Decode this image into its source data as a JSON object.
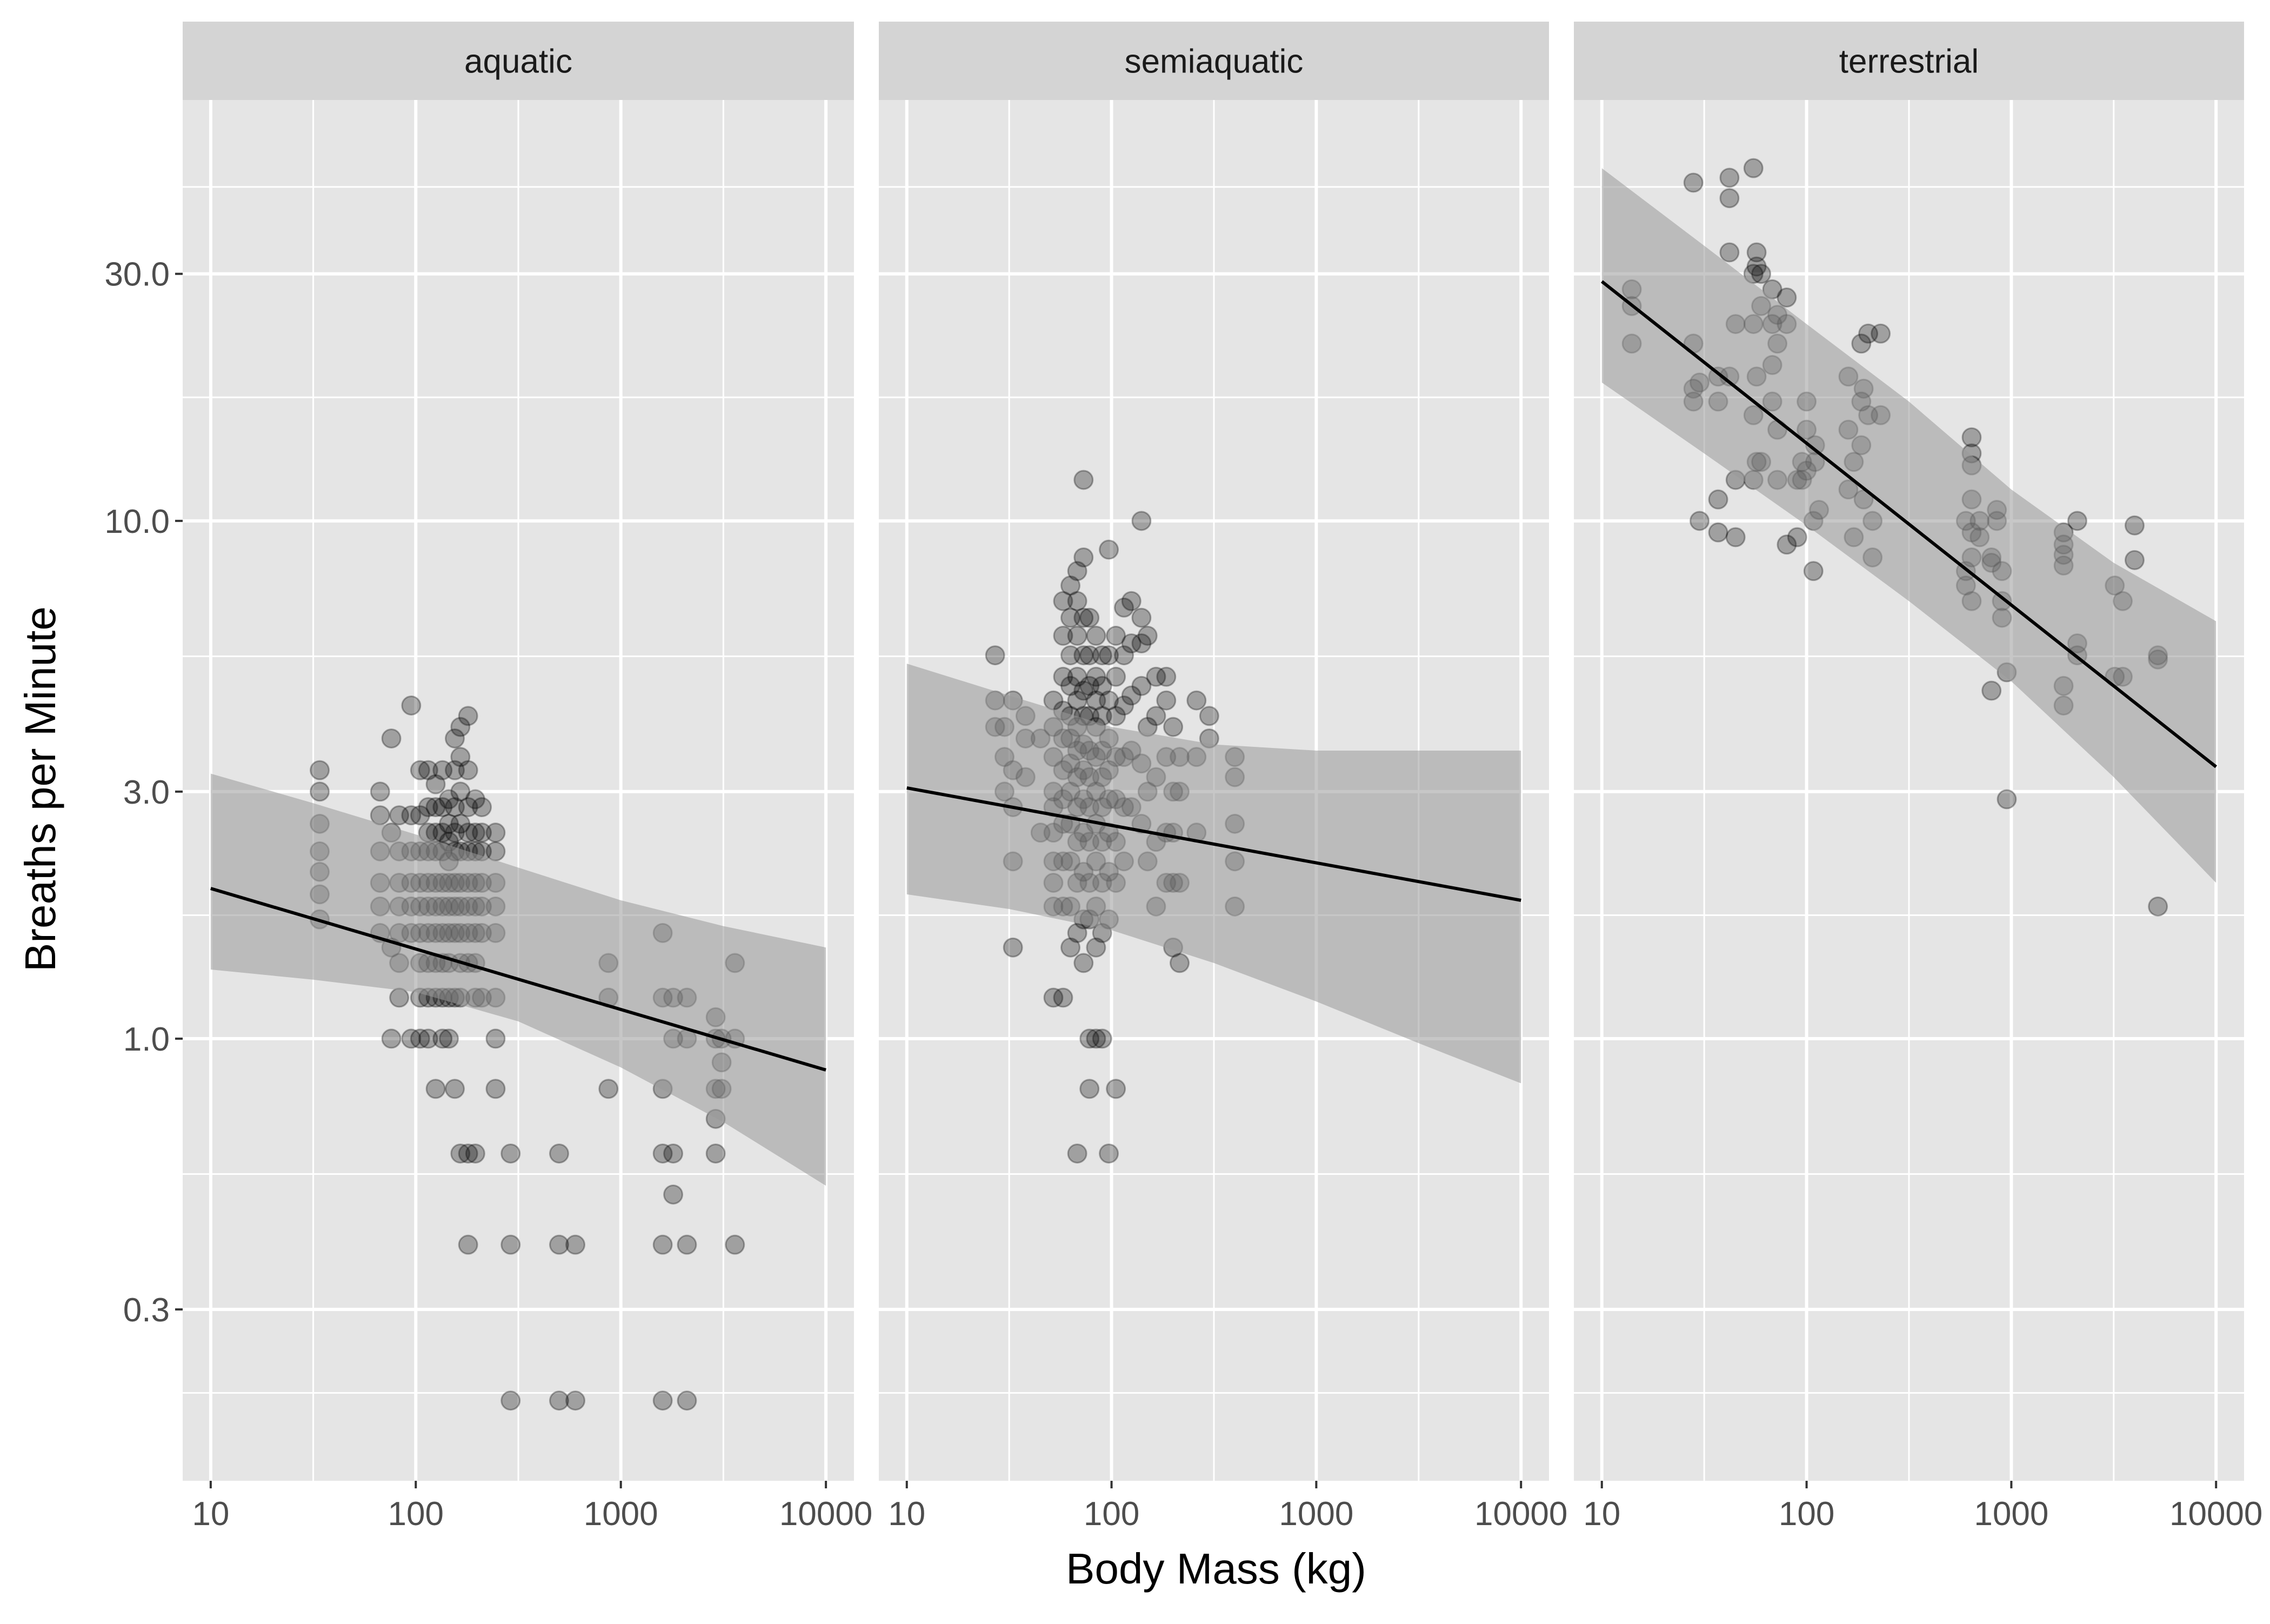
{
  "chart_data": {
    "type": "scatter",
    "title": "",
    "xlabel": "Body Mass (kg)",
    "ylabel": "Breaths per Minute",
    "x_scale": "log10",
    "y_scale": "log10",
    "xlim": [
      7.3,
      13700
    ],
    "ylim": [
      0.14,
      65
    ],
    "x_ticks": [
      10,
      100,
      1000,
      10000
    ],
    "x_tick_labels": [
      "10",
      "100",
      "1000",
      "10000"
    ],
    "y_ticks": [
      0.3,
      1.0,
      3.0,
      10.0,
      30.0
    ],
    "y_tick_labels": [
      "0.3",
      "1.0",
      "3.0",
      "10.0",
      "30.0"
    ],
    "grid": true,
    "colors": {
      "panel_background": "#e5e5e5",
      "strip_background": "#d4d4d4",
      "grid_line": "#ffffff",
      "points": "#000000",
      "ribbon": "#999999",
      "fit_line": "#000000",
      "text": "#1a1a1a",
      "tick_text": "#4d4d4d"
    },
    "facets": [
      {
        "name": "aquatic",
        "fit": {
          "x": [
            10,
            10000
          ],
          "y": [
            1.95,
            0.87
          ]
        },
        "ribbon": {
          "x": [
            10,
            31.6,
            100,
            316,
            1000,
            3162,
            10000
          ],
          "lower": [
            1.36,
            1.3,
            1.23,
            1.08,
            0.88,
            0.69,
            0.52
          ],
          "upper": [
            3.25,
            2.85,
            2.48,
            2.14,
            1.85,
            1.65,
            1.5
          ]
        },
        "points": {
          "x": [
            34,
            34,
            34,
            34,
            34,
            34,
            34,
            67,
            67,
            67,
            67,
            67,
            67,
            76,
            76,
            76,
            76,
            83,
            83,
            83,
            83,
            83,
            83,
            83,
            95,
            95,
            95,
            95,
            95,
            95,
            95,
            105,
            105,
            105,
            105,
            105,
            105,
            105,
            105,
            105,
            115,
            115,
            115,
            115,
            115,
            115,
            115,
            115,
            115,
            115,
            125,
            125,
            125,
            125,
            125,
            125,
            125,
            125,
            125,
            125,
            135,
            135,
            135,
            135,
            135,
            135,
            135,
            135,
            135,
            135,
            145,
            145,
            145,
            145,
            145,
            145,
            145,
            145,
            145,
            145,
            155,
            155,
            155,
            155,
            155,
            155,
            155,
            155,
            155,
            155,
            165,
            165,
            165,
            165,
            165,
            165,
            165,
            165,
            165,
            165,
            165,
            180,
            180,
            180,
            180,
            180,
            180,
            180,
            180,
            180,
            180,
            180,
            195,
            195,
            195,
            195,
            195,
            195,
            195,
            195,
            195,
            210,
            210,
            210,
            210,
            210,
            210,
            210,
            245,
            245,
            245,
            245,
            245,
            245,
            245,
            245,
            290,
            290,
            290,
            500,
            500,
            500,
            600,
            600,
            870,
            870,
            870,
            1600,
            1600,
            1600,
            1600,
            1600,
            1600,
            1800,
            1800,
            1800,
            1800,
            2100,
            2100,
            2100,
            2100,
            2900,
            2900,
            2900,
            2900,
            2900,
            3100,
            3100,
            3100,
            3600,
            3600,
            3600
          ],
          "y": [
            3.3,
            3.0,
            2.6,
            2.3,
            2.1,
            1.9,
            1.7,
            3.0,
            2.7,
            2.3,
            2.0,
            1.8,
            1.6,
            3.8,
            2.5,
            1.5,
            1.0,
            2.7,
            2.3,
            2.0,
            1.8,
            1.6,
            1.4,
            1.2,
            4.4,
            2.7,
            2.3,
            2.0,
            1.8,
            1.6,
            1.0,
            3.3,
            2.7,
            2.3,
            2.0,
            1.8,
            1.6,
            1.4,
            1.2,
            1.0,
            3.3,
            2.8,
            2.5,
            2.3,
            2.0,
            1.8,
            1.6,
            1.4,
            1.2,
            1.0,
            3.1,
            2.8,
            2.5,
            2.3,
            2.0,
            1.8,
            1.6,
            1.4,
            1.2,
            0.8,
            3.3,
            2.8,
            2.5,
            2.3,
            2.0,
            1.8,
            1.6,
            1.4,
            1.2,
            1.0,
            2.9,
            2.6,
            2.4,
            2.2,
            2.0,
            1.8,
            1.6,
            1.4,
            1.2,
            1.0,
            3.8,
            3.3,
            2.8,
            2.5,
            2.3,
            2.0,
            1.8,
            1.6,
            1.2,
            0.8,
            4.0,
            3.5,
            3.0,
            2.6,
            2.3,
            2.0,
            1.8,
            1.6,
            1.4,
            1.2,
            0.6,
            4.2,
            3.3,
            2.8,
            2.5,
            2.3,
            2.0,
            1.8,
            1.6,
            1.4,
            0.6,
            0.4,
            2.9,
            2.5,
            2.3,
            2.0,
            1.8,
            1.6,
            1.4,
            1.2,
            0.6,
            2.8,
            2.5,
            2.3,
            2.0,
            1.8,
            1.6,
            1.2,
            2.5,
            2.3,
            2.0,
            1.8,
            1.6,
            1.2,
            1.0,
            0.8,
            0.6,
            0.4,
            0.2,
            0.6,
            0.4,
            0.2,
            0.4,
            0.2,
            1.4,
            1.2,
            0.8,
            1.6,
            1.2,
            0.8,
            0.6,
            0.4,
            0.2,
            1.2,
            1.0,
            0.6,
            0.5,
            1.2,
            1.0,
            0.4,
            0.2,
            1.1,
            1.0,
            0.8,
            0.7,
            0.6,
            1.0,
            0.9,
            0.8,
            1.4,
            1.0,
            0.4
          ]
        }
      },
      {
        "name": "semiaquatic",
        "fit": {
          "x": [
            10,
            10000
          ],
          "y": [
            3.05,
            1.85
          ]
        },
        "ribbon": {
          "x": [
            10,
            31.6,
            100,
            316,
            1000,
            3162,
            10000
          ],
          "lower": [
            1.9,
            1.78,
            1.62,
            1.4,
            1.18,
            0.98,
            0.82
          ],
          "upper": [
            5.3,
            4.6,
            4.0,
            3.7,
            3.6,
            3.6,
            3.6
          ]
        },
        "points": {
          "x": [
            27,
            27,
            27,
            30,
            30,
            30,
            33,
            33,
            33,
            33,
            33,
            38,
            38,
            38,
            45,
            45,
            52,
            52,
            52,
            52,
            52,
            52,
            52,
            52,
            52,
            52,
            58,
            58,
            58,
            58,
            58,
            58,
            58,
            58,
            58,
            58,
            58,
            63,
            63,
            63,
            63,
            63,
            63,
            63,
            63,
            63,
            63,
            63,
            63,
            68,
            68,
            68,
            68,
            68,
            68,
            68,
            68,
            68,
            68,
            68,
            68,
            68,
            73,
            73,
            73,
            73,
            73,
            73,
            73,
            73,
            73,
            73,
            73,
            73,
            73,
            78,
            78,
            78,
            78,
            78,
            78,
            78,
            78,
            78,
            78,
            78,
            78,
            84,
            84,
            84,
            84,
            84,
            84,
            84,
            84,
            84,
            84,
            84,
            90,
            90,
            90,
            90,
            90,
            90,
            90,
            90,
            90,
            90,
            97,
            97,
            97,
            97,
            97,
            97,
            97,
            97,
            97,
            97,
            105,
            105,
            105,
            105,
            105,
            105,
            105,
            105,
            115,
            115,
            115,
            115,
            115,
            115,
            125,
            125,
            125,
            125,
            125,
            140,
            140,
            140,
            140,
            140,
            140,
            150,
            150,
            150,
            150,
            165,
            165,
            165,
            165,
            165,
            185,
            185,
            185,
            185,
            185,
            200,
            200,
            200,
            200,
            200,
            215,
            215,
            215,
            215,
            260,
            260,
            260,
            300,
            300,
            400,
            400,
            400,
            400,
            400
          ],
          "y": [
            5.5,
            4.5,
            4.0,
            4.0,
            3.5,
            3.0,
            4.5,
            3.3,
            2.8,
            2.2,
            1.5,
            4.2,
            3.8,
            3.2,
            3.8,
            2.5,
            4.5,
            4.0,
            3.5,
            3.0,
            2.8,
            2.5,
            2.2,
            2.0,
            1.8,
            1.2,
            7.0,
            6.0,
            5.0,
            4.3,
            3.8,
            3.3,
            2.9,
            2.6,
            2.2,
            1.8,
            1.2,
            7.5,
            6.5,
            5.5,
            4.8,
            4.2,
            3.8,
            3.4,
            3.0,
            2.6,
            2.2,
            1.8,
            1.5,
            8.0,
            7.0,
            6.0,
            5.0,
            4.5,
            4.0,
            3.6,
            3.2,
            2.8,
            2.4,
            2.0,
            1.6,
            0.6,
            12.0,
            8.5,
            6.5,
            5.5,
            4.7,
            4.2,
            3.7,
            3.3,
            2.9,
            2.5,
            2.1,
            1.7,
            1.4,
            6.5,
            5.5,
            4.8,
            4.2,
            3.6,
            3.2,
            2.8,
            2.4,
            2.0,
            1.7,
            1.0,
            0.8,
            6.0,
            5.0,
            4.5,
            4.0,
            3.5,
            3.0,
            2.6,
            2.2,
            1.8,
            1.5,
            1.0,
            5.5,
            4.8,
            4.2,
            3.6,
            3.2,
            2.8,
            2.4,
            2.0,
            1.6,
            1.0,
            8.8,
            5.5,
            4.5,
            3.8,
            3.3,
            2.9,
            2.5,
            2.1,
            1.7,
            0.6,
            6.0,
            5.0,
            4.2,
            3.5,
            2.9,
            2.4,
            2.0,
            0.8,
            6.8,
            5.5,
            4.4,
            3.5,
            2.8,
            2.2,
            7.0,
            5.8,
            4.6,
            3.6,
            2.8,
            10.0,
            6.5,
            5.8,
            4.8,
            3.4,
            2.6,
            6.0,
            4.0,
            3.0,
            2.2,
            5.0,
            4.2,
            3.2,
            2.4,
            1.8,
            5.0,
            4.5,
            3.5,
            2.5,
            2.0,
            4.0,
            3.0,
            2.5,
            2.0,
            1.5,
            3.5,
            3.0,
            2.0,
            1.4,
            4.5,
            3.5,
            2.5,
            4.2,
            3.8,
            3.5,
            3.2,
            2.6,
            2.2,
            1.8
          ]
        }
      },
      {
        "name": "terrestrial",
        "fit": {
          "x": [
            10,
            10000
          ],
          "y": [
            29.0,
            3.35
          ]
        },
        "ribbon": {
          "x": [
            10,
            31.6,
            100,
            316,
            1000,
            3162,
            10000
          ],
          "lower": [
            18.5,
            13.5,
            9.8,
            7.0,
            4.9,
            3.2,
            2.0
          ],
          "upper": [
            48.0,
            34.0,
            24.0,
            17.0,
            11.5,
            8.3,
            6.4
          ]
        },
        "points": {
          "x": [
            14,
            14,
            14,
            28,
            28,
            28,
            28,
            30,
            30,
            37,
            37,
            37,
            37,
            42,
            42,
            42,
            42,
            45,
            45,
            45,
            55,
            55,
            55,
            55,
            55,
            57,
            57,
            57,
            57,
            60,
            60,
            60,
            68,
            68,
            68,
            68,
            72,
            72,
            72,
            72,
            80,
            80,
            80,
            90,
            90,
            95,
            95,
            100,
            100,
            100,
            108,
            108,
            110,
            110,
            115,
            160,
            160,
            160,
            170,
            170,
            185,
            185,
            185,
            190,
            190,
            200,
            200,
            210,
            210,
            230,
            230,
            600,
            600,
            600,
            640,
            640,
            640,
            640,
            640,
            640,
            640,
            700,
            700,
            800,
            800,
            800,
            850,
            850,
            900,
            900,
            900,
            950,
            950,
            1800,
            1800,
            1800,
            1800,
            1800,
            1800,
            2100,
            2100,
            2100,
            3200,
            3200,
            3500,
            3500,
            4000,
            4000,
            5200,
            5200,
            5200
          ],
          "y": [
            28.0,
            26.0,
            22.0,
            45.0,
            22.0,
            18.0,
            17.0,
            10.0,
            18.5,
            19.0,
            17.0,
            11.0,
            9.5,
            46.0,
            42.0,
            33.0,
            19.0,
            24.0,
            12.0,
            9.3,
            48.0,
            30.0,
            24.0,
            16.0,
            12.0,
            33.0,
            31.0,
            19.0,
            13.0,
            30.0,
            26.0,
            13.0,
            28.0,
            24.0,
            20.0,
            17.0,
            25.0,
            22.0,
            15.0,
            12.0,
            27.0,
            24.0,
            9.0,
            12.0,
            9.3,
            13.0,
            12.0,
            17.0,
            15.0,
            12.5,
            10.0,
            8.0,
            14.0,
            13.0,
            10.5,
            19.0,
            15.0,
            11.5,
            13.0,
            9.3,
            22.0,
            17.0,
            14.0,
            18.0,
            11.0,
            23.0,
            16.0,
            10.0,
            8.5,
            23.0,
            16.0,
            7.5,
            8.0,
            10.0,
            14.5,
            13.5,
            12.8,
            11.0,
            9.5,
            8.5,
            7.0,
            10.0,
            9.3,
            4.7,
            8.5,
            8.3,
            10.5,
            10.0,
            7.0,
            6.5,
            8.0,
            5.1,
            2.9,
            9.5,
            9.0,
            8.6,
            8.2,
            4.8,
            4.4,
            10.0,
            5.8,
            5.5,
            7.5,
            5.0,
            7.0,
            5.0,
            9.8,
            8.4,
            1.8,
            5.5,
            5.4
          ]
        }
      }
    ]
  }
}
